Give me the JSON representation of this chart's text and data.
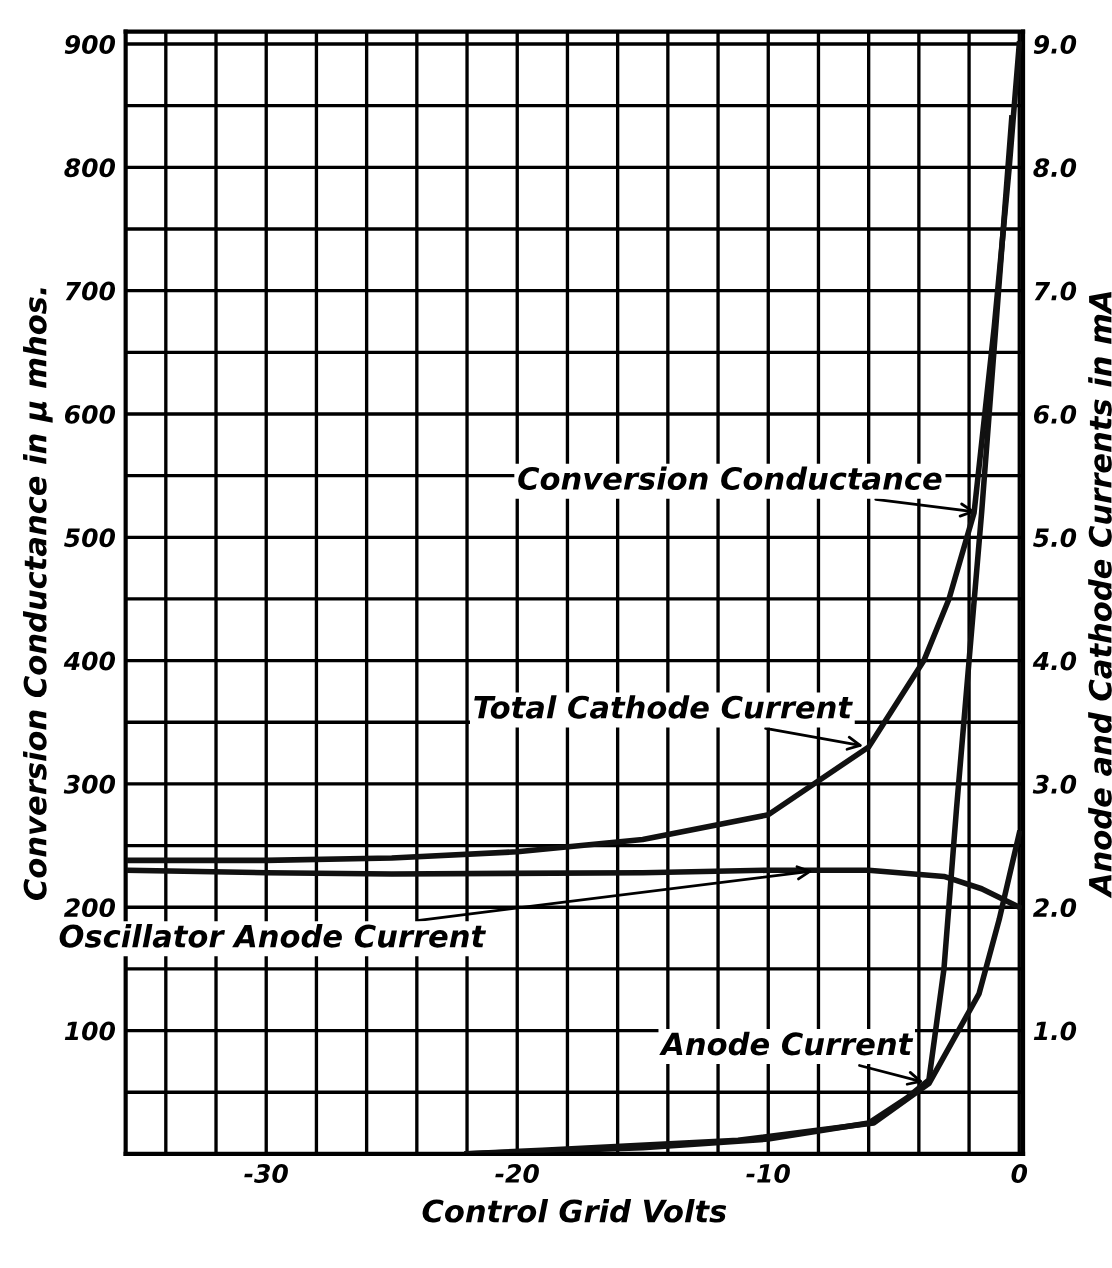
{
  "chart_data": {
    "type": "line",
    "xlabel": "Control Grid Volts",
    "ylabel": "Conversion Conductance in μ mhos.",
    "y2label": "Anode and Cathode Currents in mA",
    "series": [
      {
        "name": "Conversion Conductance",
        "color": "#111111",
        "axis": "y",
        "x": [
          -22,
          -15,
          -10,
          -6,
          -4.5,
          -3.6,
          -3,
          -2.5,
          -2,
          -1.5,
          -0.9,
          -0.3
        ],
        "values": [
          0,
          5,
          12,
          25,
          45,
          60,
          150,
          280,
          400,
          520,
          680,
          840
        ]
      },
      {
        "name": "Total Cathode Current",
        "color": "#111111",
        "axis": "y2",
        "x": [
          -35.5,
          -30,
          -25,
          -20,
          -15,
          -10,
          -6,
          -3.8,
          -2.8,
          -1.8,
          -1,
          -0.4,
          0
        ],
        "values": [
          2.38,
          2.38,
          2.4,
          2.45,
          2.55,
          2.75,
          3.3,
          4.0,
          4.5,
          5.2,
          6.7,
          8.0,
          9.0
        ]
      },
      {
        "name": "Oscillator Anode Current",
        "color": "#111111",
        "axis": "y2",
        "x": [
          -35.5,
          -30,
          -25,
          -15,
          -10,
          -8,
          -6,
          -3,
          -1.5,
          0
        ],
        "values": [
          2.3,
          2.28,
          2.27,
          2.28,
          2.3,
          2.3,
          2.3,
          2.25,
          2.15,
          2.0
        ]
      },
      {
        "name": "Anode Current",
        "color": "#111111",
        "axis": "y2",
        "x": [
          -22,
          -19,
          -11.2,
          -5.8,
          -3.6,
          -1.6,
          -0.8,
          0
        ],
        "values": [
          0,
          0.03,
          0.11,
          0.25,
          0.57,
          1.3,
          1.9,
          2.6
        ]
      }
    ],
    "xlim": [
      -35.6,
      0.15
    ],
    "xticks": [
      {
        "value": -34,
        "label": null
      },
      {
        "value": -32,
        "label": null
      },
      -30,
      {
        "value": -28,
        "label": null
      },
      {
        "value": -26,
        "label": null
      },
      {
        "value": -24,
        "label": null
      },
      {
        "value": -22,
        "label": null
      },
      -20,
      {
        "value": -18,
        "label": null
      },
      {
        "value": -16,
        "label": null
      },
      {
        "value": -14,
        "label": null
      },
      {
        "value": -12,
        "label": null
      },
      -10,
      {
        "value": -8,
        "label": null
      },
      {
        "value": -6,
        "label": null
      },
      {
        "value": -4,
        "label": null
      },
      {
        "value": -2,
        "label": null
      },
      0
    ],
    "ylim": [
      0,
      910
    ],
    "yticks": [
      {
        "value": 0,
        "label": null
      },
      {
        "value": 50,
        "label": null
      },
      100,
      {
        "value": 150,
        "label": null
      },
      200,
      {
        "value": 250,
        "label": null
      },
      300,
      {
        "value": 350,
        "label": null
      },
      400,
      {
        "value": 450,
        "label": null
      },
      500,
      {
        "value": 550,
        "label": null
      },
      600,
      {
        "value": 650,
        "label": null
      },
      700,
      {
        "value": 750,
        "label": null
      },
      800,
      {
        "value": 850,
        "label": null
      },
      900
    ],
    "y2lim": [
      0,
      9.1
    ],
    "y2ticks": [
      {
        "value": 0,
        "label": null
      },
      {
        "value": 1,
        "label": "1.0"
      },
      {
        "value": 2,
        "label": "2.0"
      },
      {
        "value": 3,
        "label": "3.0"
      },
      {
        "value": 4,
        "label": "4.0"
      },
      {
        "value": 5,
        "label": "5.0"
      },
      {
        "value": 6,
        "label": "6.0"
      },
      {
        "value": 7,
        "label": "7.0"
      },
      {
        "value": 8,
        "label": "8.0"
      },
      {
        "value": 9,
        "label": "9.0"
      }
    ],
    "grid": true,
    "legend": false,
    "marker": "none",
    "line_style": "solid"
  }
}
